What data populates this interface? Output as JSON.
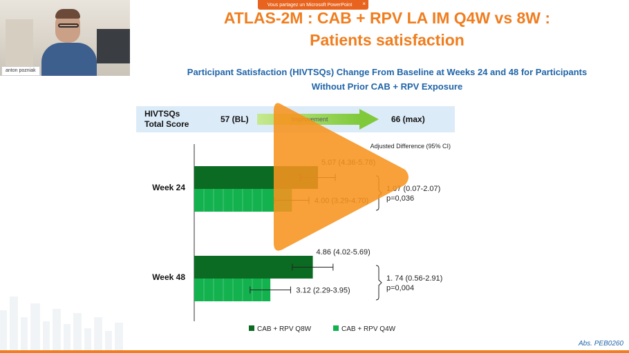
{
  "share_bar": {
    "text": "Vous partagez un Microsoft PowerPoint",
    "close": "×"
  },
  "video": {
    "participant_name": "anton pozniak"
  },
  "slide": {
    "title_line1": "ATLAS-2M : CAB + RPV LA IM Q4W vs 8W :",
    "title_line2": "Patients satisfaction",
    "subtitle_line1": "Participant Satisfaction (HIVTSQs) Change From Baseline at Weeks 24 and 48 for Participants",
    "subtitle_line2": "Without Prior CAB + RPV Exposure",
    "score_label_line1": "HIVTSQs",
    "score_label_line2": "Total Score",
    "score_bl": "57 (BL)",
    "improvement": "Improvement",
    "score_max": "66 (max)",
    "abs_ref": "Abs. PEB0260"
  },
  "colors": {
    "title": "#f07d1e",
    "subtitle": "#1f64a8",
    "q8w": "#0b6b22",
    "q4w": "#13b24f",
    "play": "#f7931e"
  },
  "chart_data": {
    "type": "bar",
    "orientation": "horizontal",
    "header": "Adjusted Difference (95% CI)",
    "categories": [
      "Week 24",
      "Week 48"
    ],
    "series": [
      {
        "name": "CAB + RPV Q8W",
        "values": [
          5.07,
          4.86
        ],
        "ci_low": [
          4.36,
          4.02
        ],
        "ci_high": [
          5.78,
          5.69
        ],
        "labels": [
          "5.07 (4.36-5.78)",
          "4.86 (4.02-5.69)"
        ]
      },
      {
        "name": "CAB + RPV Q4W",
        "values": [
          4.0,
          3.12
        ],
        "ci_low": [
          3.29,
          2.29
        ],
        "ci_high": [
          4.7,
          3.95
        ],
        "labels": [
          "4.00 (3.29-4.70)",
          "3.12 (2.29-3.95)"
        ]
      }
    ],
    "differences": [
      {
        "value": "1.07 (0.07-2.07)",
        "p": "p=0,036"
      },
      {
        "value": "1. 74 (0.56-2.91)",
        "p": "p=0,004"
      }
    ],
    "xlim": [
      0,
      6
    ],
    "grid": false,
    "legend_position": "bottom"
  }
}
